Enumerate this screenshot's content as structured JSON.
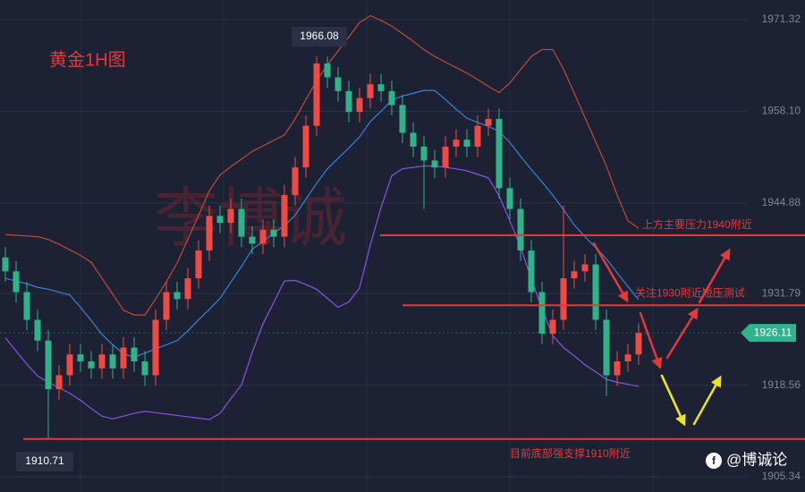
{
  "chart_data": {
    "type": "candlestick",
    "title": "黄金1H图",
    "watermark": "李博诚",
    "brand": "@博诚论",
    "open": [
      1937,
      1935,
      1932,
      1928,
      1925,
      1918,
      1920,
      1923,
      1922,
      1921,
      1923,
      1921,
      1924,
      1922,
      1920,
      1928,
      1932,
      1931,
      1934,
      1938,
      1943,
      1942,
      1944,
      1940,
      1939,
      1941,
      1940,
      1946,
      1950,
      1956,
      1965,
      1963,
      1961,
      1958,
      1960,
      1962,
      1961,
      1959,
      1955,
      1953,
      1951,
      1950,
      1953,
      1954,
      1953,
      1956,
      1957,
      1947,
      1944,
      1938,
      1932,
      1926,
      1928,
      1934,
      1935,
      1936,
      1928,
      1920,
      1922,
      1923
    ],
    "high": [
      1938.5,
      1936.5,
      1933.5,
      1929.5,
      1926.5,
      1921.5,
      1924.5,
      1924.5,
      1923.5,
      1924.5,
      1924.5,
      1925.5,
      1925.5,
      1923.5,
      1929.5,
      1933.5,
      1933.5,
      1935.5,
      1939.5,
      1944.5,
      1944.5,
      1945.5,
      1945.5,
      1941.5,
      1942.5,
      1942.5,
      1947.5,
      1951.5,
      1957.5,
      1966.08,
      1966,
      1964.5,
      1962.5,
      1961.5,
      1963.5,
      1963.5,
      1962.5,
      1960.5,
      1956.5,
      1954.5,
      1952.5,
      1954.5,
      1955.5,
      1955.5,
      1957.5,
      1958.5,
      1958.5,
      1948.5,
      1945.5,
      1939.5,
      1933.5,
      1929.5,
      1944.5,
      1936.5,
      1937.5,
      1937.5,
      1929.5,
      1923.5,
      1924.5,
      1927.5
    ],
    "low": [
      1933.5,
      1930.5,
      1926.5,
      1923.5,
      1910.71,
      1916.5,
      1918.5,
      1920.5,
      1919.5,
      1919.5,
      1919.5,
      1919.5,
      1920.5,
      1918.5,
      1918.5,
      1926.5,
      1929.5,
      1929.5,
      1932.5,
      1936.5,
      1940.5,
      1940.5,
      1938.5,
      1937.5,
      1937.5,
      1938.5,
      1938.5,
      1944.5,
      1948.5,
      1954.5,
      1961.5,
      1959.5,
      1956.5,
      1956.5,
      1958.5,
      1959.5,
      1957.5,
      1953.5,
      1951.5,
      1944,
      1948.5,
      1948.5,
      1951.5,
      1951.5,
      1951.5,
      1954.5,
      1945.5,
      1942.5,
      1936.5,
      1930.5,
      1924.5,
      1924.5,
      1926.5,
      1932.5,
      1933.5,
      1926.5,
      1917,
      1918.5,
      1920.5,
      1921.5
    ],
    "close": [
      1935,
      1932,
      1928,
      1925,
      1918,
      1920,
      1923,
      1922,
      1921,
      1923,
      1921,
      1924,
      1922,
      1920,
      1928,
      1932,
      1931,
      1934,
      1938,
      1943,
      1942,
      1944,
      1940,
      1939,
      1941,
      1940,
      1946,
      1950,
      1956,
      1965,
      1963,
      1961,
      1958,
      1960,
      1962,
      1961,
      1959,
      1955,
      1953,
      1951,
      1950,
      1953,
      1954,
      1953,
      1956,
      1957,
      1947,
      1944,
      1938,
      1932,
      1926,
      1928,
      1934,
      1935,
      1936,
      1928,
      1920,
      1922,
      1923,
      1926.11
    ],
    "up_color": "#ef4a44",
    "down_color": "#2fb38b",
    "bands": [
      {
        "color": "#c2483c",
        "values": [
          1940.3,
          1940.2,
          1940.1,
          1940.0,
          1939.6,
          1938.9,
          1938.1,
          1937.3,
          1936.3,
          1934.0,
          1931.7,
          1929.4,
          1928.7,
          1928.7,
          1931.0,
          1933.5,
          1936.2,
          1939.6,
          1943.1,
          1946.6,
          1948.9,
          1950.1,
          1951.2,
          1952.3,
          1953.1,
          1953.9,
          1954.7,
          1957.0,
          1959.8,
          1962.5,
          1964.8,
          1966.8,
          1968.8,
          1970.9,
          1971.9,
          1971.2,
          1970.4,
          1969.3,
          1968.2,
          1967.0,
          1966.0,
          1965.2,
          1964.4,
          1963.6,
          1962.7,
          1961.7,
          1960.8,
          1962.2,
          1964.1,
          1966.0,
          1967.0,
          1967.0,
          1964.2,
          1960.7,
          1957.2,
          1953.7,
          1950.2,
          1946.0,
          1942.3,
          1941.2
        ]
      },
      {
        "color": "#3d7fd8",
        "values": [
          1934.0,
          1933.6,
          1933.2,
          1932.7,
          1932.4,
          1932.0,
          1931.6,
          1929.8,
          1927.9,
          1925.9,
          1924.4,
          1923.1,
          1922.6,
          1923.2,
          1923.8,
          1924.4,
          1925.0,
          1926.4,
          1928.0,
          1929.5,
          1931.1,
          1933.4,
          1935.7,
          1938.2,
          1939.3,
          1940.5,
          1941.6,
          1943.1,
          1945.4,
          1947.7,
          1949.8,
          1951.3,
          1952.8,
          1954.4,
          1956.6,
          1958.1,
          1959.7,
          1960.3,
          1960.7,
          1961.1,
          1961.1,
          1959.8,
          1958.4,
          1957.1,
          1956.5,
          1955.9,
          1955.2,
          1953.6,
          1951.6,
          1949.7,
          1947.9,
          1946.0,
          1943.9,
          1941.7,
          1940.0,
          1938.4,
          1936.8,
          1934.8,
          1932.8,
          1930.9
        ]
      },
      {
        "color": "#8b52e6",
        "values": [
          1925.4,
          1923.5,
          1921.6,
          1919.9,
          1919.0,
          1918.2,
          1917.4,
          1916.4,
          1915.2,
          1914.1,
          1913.7,
          1914.1,
          1914.5,
          1914.8,
          1914.6,
          1914.4,
          1914.2,
          1914.0,
          1913.8,
          1913.6,
          1914.5,
          1916.6,
          1918.6,
          1923.3,
          1927.4,
          1930.5,
          1933.6,
          1933.7,
          1933.1,
          1932.4,
          1931.1,
          1929.8,
          1930.6,
          1932.6,
          1938.8,
          1944.2,
          1948.8,
          1949.8,
          1950.0,
          1950.2,
          1950.2,
          1950.0,
          1949.8,
          1949.5,
          1949.0,
          1948.5,
          1945.9,
          1942.3,
          1938.5,
          1933.9,
          1929.6,
          1925.7,
          1924.0,
          1922.8,
          1921.5,
          1920.5,
          1919.4,
          1919.0,
          1918.7,
          1918.4
        ]
      }
    ],
    "levels": [
      {
        "value": 1940.2,
        "label": "上方主要压力1940附近"
      },
      {
        "value": 1930.1,
        "label": "关注1930附近短压测试"
      },
      {
        "value": 1910.8,
        "label": "目前底部强支撑1910附近"
      }
    ],
    "level_color": "#e5383b",
    "current_color": "#2fb38b",
    "ylim": [
      1903.15,
      1974.16
    ],
    "yticks": [
      1905.34,
      1918.56,
      1931.79,
      1944.88,
      {
        "value": 1958.1,
        "label": "1958.10"
      },
      1971.32
    ],
    "grid": true
  }
}
